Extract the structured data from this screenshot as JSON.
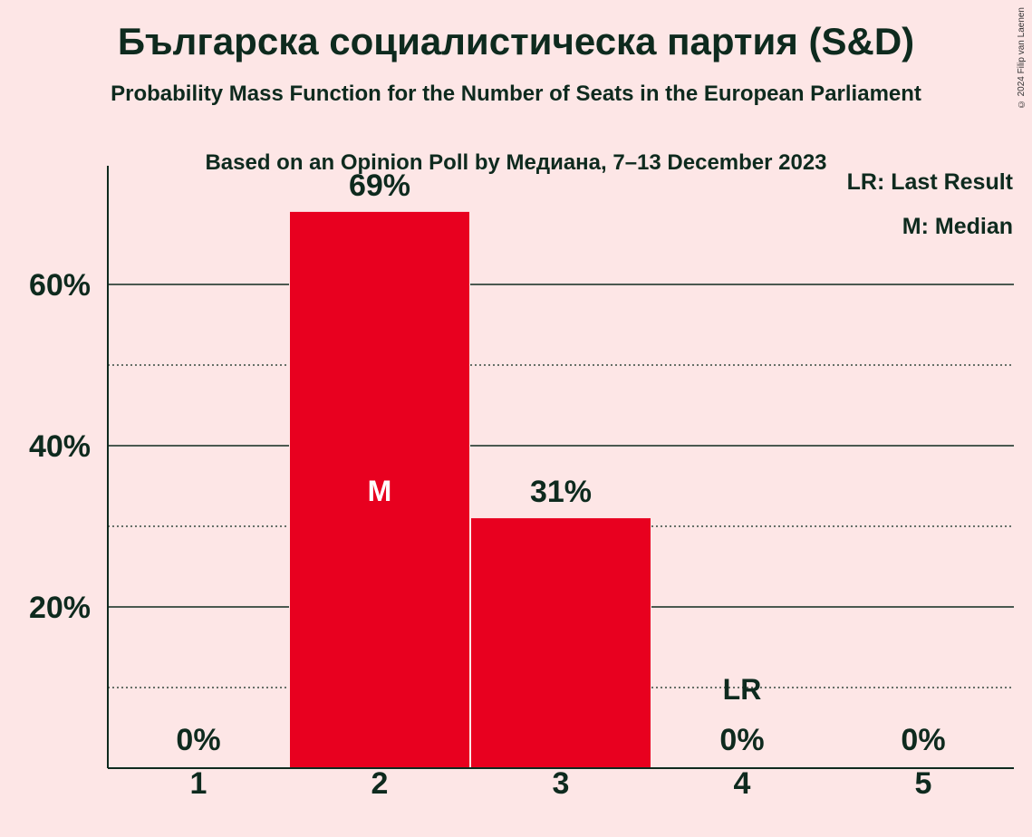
{
  "title": "Българска социалистическа партия (S&D)",
  "subtitle": "Probability Mass Function for the Number of Seats in the European Parliament",
  "subtitle2": "Based on an Opinion Poll by Медиана, 7–13 December 2023",
  "copyright": "© 2024 Filip van Laenen",
  "legend": {
    "last_result": "LR: Last Result",
    "median": "M: Median"
  },
  "colors": {
    "bar": "#e8001f",
    "background": "#fde6e6",
    "text": "#0e2a1e"
  },
  "chart_data": {
    "type": "bar",
    "categories": [
      "1",
      "2",
      "3",
      "4",
      "5"
    ],
    "values": [
      0,
      69,
      31,
      0,
      0
    ],
    "value_labels": [
      "0%",
      "69%",
      "31%",
      "0%",
      "0%"
    ],
    "y_tick_values": [
      20,
      40,
      60
    ],
    "y_tick_labels": [
      "20%",
      "40%",
      "60%"
    ],
    "y_minor_gridlines": [
      10,
      30,
      50
    ],
    "ylim": [
      0,
      75
    ],
    "grid": true,
    "legend_position": "top-right",
    "median_category": "2",
    "median_label": "M",
    "last_result_category": "4",
    "last_result_label": "LR"
  }
}
